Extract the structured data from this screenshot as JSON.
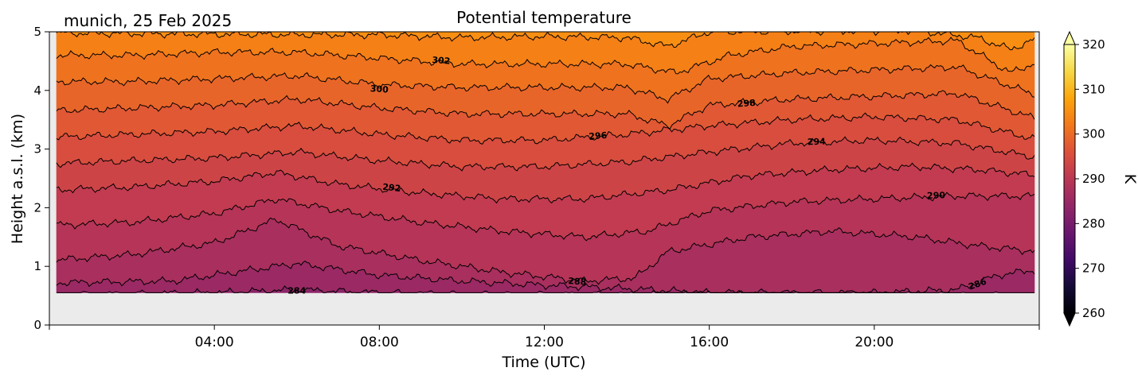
{
  "chart_data": {
    "type": "contour",
    "title": "Potential temperature",
    "subtitle": "munich, 25 Feb 2025",
    "xlabel": "Time (UTC)",
    "ylabel": "Height a.s.l. (km)",
    "xlim": [
      0,
      24
    ],
    "ylim": [
      0,
      5
    ],
    "x_ticks": [
      {
        "value": 4,
        "label": "04:00"
      },
      {
        "value": 8,
        "label": "08:00"
      },
      {
        "value": 12,
        "label": "12:00"
      },
      {
        "value": 16,
        "label": "16:00"
      },
      {
        "value": 20,
        "label": "20:00"
      }
    ],
    "y_ticks": [
      {
        "value": 0,
        "label": "0"
      },
      {
        "value": 1,
        "label": "1"
      },
      {
        "value": 2,
        "label": "2"
      },
      {
        "value": 3,
        "label": "3"
      },
      {
        "value": 4,
        "label": "4"
      },
      {
        "value": 5,
        "label": "5"
      }
    ],
    "data_bottom_km": 0.55,
    "no_data_color": "#ebebeb",
    "colormap": "inferno",
    "colorbar": {
      "label": "K",
      "range": [
        260,
        320
      ],
      "extend": "both",
      "ticks": [
        "260",
        "270",
        "280",
        "290",
        "300",
        "310",
        "320"
      ]
    },
    "contour_levels": [
      {
        "level": 284,
        "label": "284",
        "label_time": 6.0,
        "profile": [
          [
            0,
            0.51
          ],
          [
            4,
            0.55
          ],
          [
            6,
            0.6
          ],
          [
            8,
            0.55
          ],
          [
            10,
            0.52
          ],
          [
            24,
            0.5
          ]
        ]
      },
      {
        "level": 286,
        "label": "286",
        "label_time": 22.5,
        "profile": [
          [
            0,
            0.72
          ],
          [
            3,
            0.75
          ],
          [
            5,
            0.95
          ],
          [
            6,
            1.05
          ],
          [
            8,
            0.85
          ],
          [
            10,
            0.75
          ],
          [
            12,
            0.68
          ],
          [
            14,
            0.62
          ],
          [
            16,
            0.55
          ],
          [
            20,
            0.55
          ],
          [
            22,
            0.6
          ],
          [
            23,
            0.85
          ],
          [
            24,
            0.95
          ]
        ]
      },
      {
        "level": 288,
        "label": "288",
        "label_time": 12.8,
        "profile": [
          [
            0,
            1.1
          ],
          [
            2,
            1.2
          ],
          [
            4,
            1.4
          ],
          [
            5.5,
            1.8
          ],
          [
            7,
            1.35
          ],
          [
            9,
            1.1
          ],
          [
            11,
            0.9
          ],
          [
            13,
            0.75
          ],
          [
            14.2,
            0.8
          ],
          [
            15,
            1.25
          ],
          [
            17,
            1.5
          ],
          [
            19,
            1.6
          ],
          [
            21,
            1.5
          ],
          [
            22.5,
            1.35
          ],
          [
            24,
            1.25
          ]
        ]
      },
      {
        "level": 290,
        "label": "290",
        "label_time": 21.5,
        "profile": [
          [
            0,
            1.7
          ],
          [
            2,
            1.75
          ],
          [
            4,
            1.9
          ],
          [
            5.5,
            2.15
          ],
          [
            7,
            1.95
          ],
          [
            9,
            1.75
          ],
          [
            11,
            1.6
          ],
          [
            13,
            1.5
          ],
          [
            14.5,
            1.6
          ],
          [
            16,
            1.95
          ],
          [
            18,
            2.1
          ],
          [
            20,
            2.15
          ],
          [
            22,
            2.2
          ],
          [
            24,
            2.2
          ]
        ]
      },
      {
        "level": 292,
        "label": "292",
        "label_time": 8.3,
        "profile": [
          [
            0,
            2.3
          ],
          [
            2,
            2.35
          ],
          [
            4,
            2.45
          ],
          [
            5.5,
            2.6
          ],
          [
            7,
            2.4
          ],
          [
            9,
            2.25
          ],
          [
            11,
            2.15
          ],
          [
            13,
            2.15
          ],
          [
            15,
            2.3
          ],
          [
            17,
            2.55
          ],
          [
            19,
            2.65
          ],
          [
            21,
            2.7
          ],
          [
            22.5,
            2.65
          ],
          [
            24,
            2.55
          ]
        ]
      },
      {
        "level": 294,
        "label": "294",
        "label_time": 18.6,
        "profile": [
          [
            0,
            2.75
          ],
          [
            2,
            2.8
          ],
          [
            4,
            2.85
          ],
          [
            6,
            2.95
          ],
          [
            8,
            2.8
          ],
          [
            10,
            2.7
          ],
          [
            12,
            2.7
          ],
          [
            14,
            2.78
          ],
          [
            16,
            2.95
          ],
          [
            18,
            3.1
          ],
          [
            20,
            3.15
          ],
          [
            22,
            3.1
          ],
          [
            24,
            2.85
          ]
        ]
      },
      {
        "level": 296,
        "label": "296",
        "label_time": 13.3,
        "profile": [
          [
            0,
            3.2
          ],
          [
            2,
            3.25
          ],
          [
            4,
            3.3
          ],
          [
            6,
            3.4
          ],
          [
            8,
            3.25
          ],
          [
            10,
            3.15
          ],
          [
            12,
            3.15
          ],
          [
            14,
            3.25
          ],
          [
            16,
            3.4
          ],
          [
            18,
            3.5
          ],
          [
            20,
            3.55
          ],
          [
            22,
            3.5
          ],
          [
            24,
            3.15
          ]
        ]
      },
      {
        "level": 298,
        "label": "298",
        "label_time": 16.9,
        "profile": [
          [
            0,
            3.65
          ],
          [
            2,
            3.7
          ],
          [
            4,
            3.75
          ],
          [
            6,
            3.85
          ],
          [
            8,
            3.7
          ],
          [
            10,
            3.6
          ],
          [
            12,
            3.6
          ],
          [
            14,
            3.6
          ],
          [
            15,
            3.4
          ],
          [
            16,
            3.75
          ],
          [
            18,
            3.85
          ],
          [
            20,
            3.9
          ],
          [
            22,
            3.95
          ],
          [
            24,
            3.5
          ]
        ]
      },
      {
        "level": 300,
        "label": "300",
        "label_time": 8.0,
        "profile": [
          [
            0,
            4.15
          ],
          [
            2,
            4.15
          ],
          [
            4,
            4.2
          ],
          [
            6,
            4.25
          ],
          [
            8,
            4.1
          ],
          [
            10,
            4.05
          ],
          [
            12,
            4.05
          ],
          [
            14,
            4.05
          ],
          [
            15,
            3.85
          ],
          [
            16,
            4.2
          ],
          [
            18,
            4.3
          ],
          [
            20,
            4.35
          ],
          [
            22,
            4.4
          ],
          [
            24,
            3.9
          ]
        ]
      },
      {
        "level": 302,
        "label": "302",
        "label_time": 9.5,
        "profile": [
          [
            0,
            4.6
          ],
          [
            2,
            4.6
          ],
          [
            4,
            4.65
          ],
          [
            6,
            4.65
          ],
          [
            8,
            4.55
          ],
          [
            10,
            4.45
          ],
          [
            12,
            4.45
          ],
          [
            14,
            4.45
          ],
          [
            15.2,
            4.3
          ],
          [
            16.5,
            4.6
          ],
          [
            18,
            4.75
          ],
          [
            20,
            4.8
          ],
          [
            22,
            4.85
          ],
          [
            23.3,
            4.3
          ],
          [
            24,
            4.5
          ]
        ]
      },
      {
        "level": 304,
        "label": "",
        "label_time": 0,
        "profile": [
          [
            0,
            4.98
          ],
          [
            6,
            4.95
          ],
          [
            8,
            4.95
          ],
          [
            10,
            4.9
          ],
          [
            12,
            4.92
          ],
          [
            14,
            4.9
          ],
          [
            15,
            4.75
          ],
          [
            16,
            5.0
          ],
          [
            21,
            5.02
          ],
          [
            22.5,
            4.9
          ],
          [
            23.3,
            4.7
          ],
          [
            24,
            4.9
          ]
        ]
      }
    ]
  }
}
